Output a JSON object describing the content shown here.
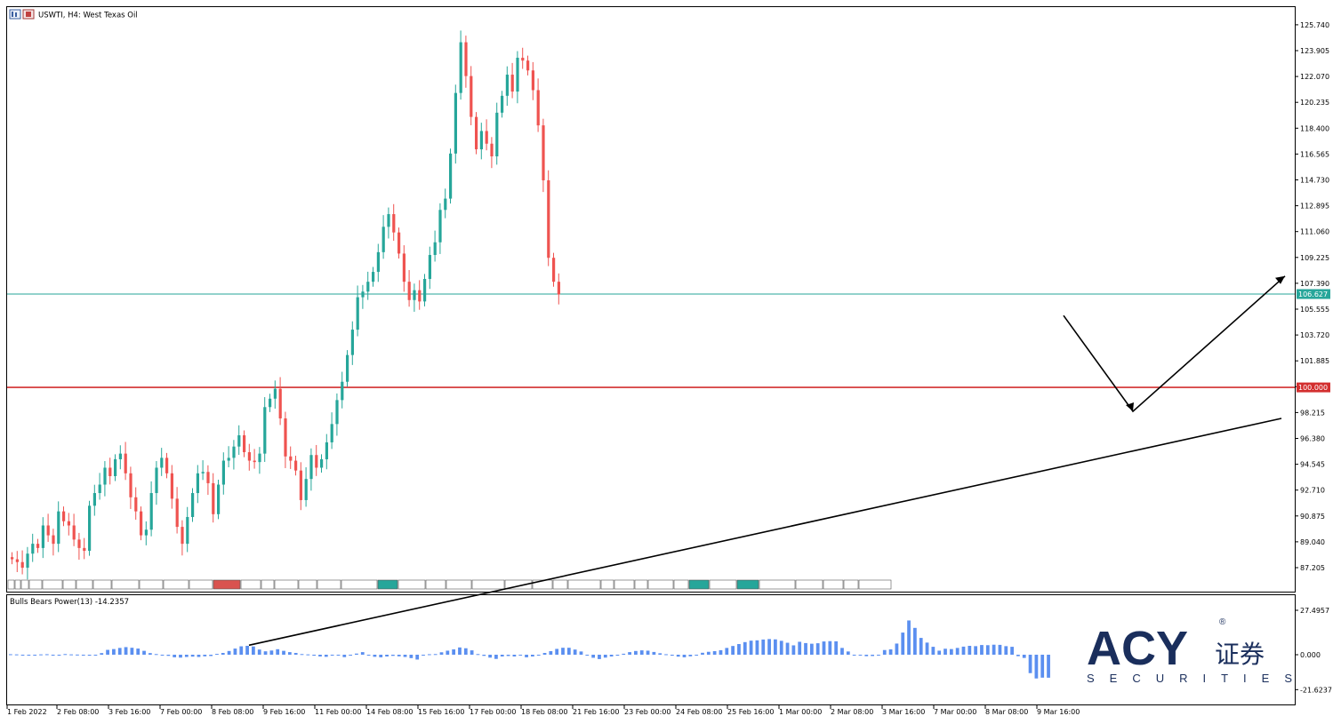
{
  "header": {
    "symbol_label": "USWTI, H4:  West Texas Oil",
    "symbol_icon": "chart-window-icon"
  },
  "colors": {
    "bull": "#26a69a",
    "bear": "#ef5350",
    "current_line": "#26a69a",
    "level_line": "#d32f2f",
    "indicator": "#5b8ff0",
    "brand": "#1a2e5c"
  },
  "chart_data": [
    {
      "type": "candlestick",
      "title": "USWTI, H4:  West Texas Oil",
      "y_ticks": [
        "125.740",
        "123.905",
        "122.070",
        "120.235",
        "118.400",
        "116.565",
        "114.730",
        "112.895",
        "111.060",
        "109.225",
        "107.390",
        "105.555",
        "103.720",
        "101.885",
        "100.050",
        "98.215",
        "96.380",
        "94.545",
        "92.710",
        "90.875",
        "89.040",
        "87.205"
      ],
      "ylim": [
        86.4,
        126.5
      ],
      "x_tick_labels": [
        "1 Feb 2022",
        "2 Feb 08:00",
        "3 Feb 16:00",
        "7 Feb 00:00",
        "8 Feb 08:00",
        "9 Feb 16:00",
        "11 Feb 00:00",
        "14 Feb 08:00",
        "15 Feb 16:00",
        "17 Feb 00:00",
        "18 Feb 08:00",
        "21 Feb 16:00",
        "23 Feb 00:00",
        "24 Feb 08:00",
        "25 Feb 16:00",
        "1 Mar 00:00",
        "2 Mar 08:00",
        "3 Mar 16:00",
        "7 Mar 00:00",
        "8 Mar 08:00",
        "9 Mar 16:00"
      ],
      "current_price": {
        "value": 106.627,
        "label": "106.627"
      },
      "level": {
        "value": 100.0,
        "label": "100.000"
      },
      "close_path": [
        87.8,
        87.6,
        87.2,
        88.2,
        88.9,
        88.6,
        90.2,
        89.5,
        88.9,
        91.2,
        90.5,
        90.2,
        89.2,
        88.6,
        88.4,
        91.6,
        92.5,
        93.1,
        94.3,
        93.7,
        94.9,
        95.3,
        93.9,
        92.2,
        91.2,
        89.5,
        89.9,
        92.5,
        94.3,
        95.0,
        93.9,
        92.1,
        90.1,
        88.9,
        90.8,
        92.5,
        93.9,
        94.0,
        93.2,
        91.0,
        93.1,
        94.8,
        95.0,
        95.8,
        96.6,
        95.4,
        94.8,
        94.7,
        95.3,
        98.6,
        99.2,
        99.9,
        97.8,
        95.1,
        94.8,
        94.1,
        92.0,
        93.5,
        95.2,
        94.3,
        94.9,
        96.1,
        97.4,
        99.1,
        100.4,
        102.3,
        104.1,
        106.4,
        106.8,
        107.5,
        108.2,
        109.6,
        111.4,
        112.3,
        111.0,
        109.5,
        107.5,
        106.2,
        106.9,
        106.1,
        107.7,
        109.4,
        110.3,
        112.6,
        113.4,
        116.6,
        120.9,
        124.5,
        122.1,
        119.2,
        116.9,
        118.2,
        117.3,
        116.4,
        119.5,
        120.7,
        122.2,
        121.0,
        123.4,
        123.2,
        122.5,
        121.1,
        118.6,
        114.7,
        109.2,
        107.5,
        106.6
      ],
      "annotations": [
        {
          "type": "trendline",
          "from": [
            "1 Feb 2022",
            81.7
          ],
          "to": [
            "beyond 9 Mar 16:00",
            97.8
          ]
        },
        {
          "type": "arrow",
          "from": [
            "9 Mar 16:00",
            105.1
          ],
          "via": [
            "after 9 Mar 16:00",
            98.3
          ],
          "to": [
            "right edge",
            107.9
          ]
        }
      ]
    },
    {
      "type": "bar",
      "title": "Bulls Bears Power(13) -14.2357",
      "y_ticks": [
        "27.4957",
        "0.000",
        "-21.6237"
      ],
      "ylim": [
        -21.6237,
        27.4957
      ],
      "last_value": -14.2357,
      "values": [
        0.3,
        0.2,
        -0.3,
        0.0,
        -0.4,
        0.2,
        0.3,
        -0.1,
        -0.2,
        0.4,
        0.2,
        0.1,
        -0.4,
        -0.6,
        -0.5,
        1.0,
        3.0,
        3.5,
        4.2,
        4.7,
        4.3,
        3.8,
        2.4,
        1.0,
        0.4,
        -0.5,
        -0.7,
        -1.6,
        -1.8,
        -1.4,
        -1.2,
        -1.4,
        -1.0,
        -0.8,
        0.5,
        1.1,
        2.3,
        3.8,
        5.2,
        5.5,
        5.1,
        3.2,
        2.1,
        2.6,
        3.4,
        2.4,
        1.6,
        1.1,
        0.4,
        0.2,
        -0.6,
        -1.1,
        -1.3,
        -0.3,
        -0.5,
        -1.5,
        -0.4,
        0.7,
        1.6,
        -0.2,
        -1.3,
        -1.6,
        -1.1,
        -0.7,
        -1.0,
        -1.4,
        -2.1,
        -3.0,
        -0.4,
        0.3,
        0.4,
        1.5,
        2.5,
        3.3,
        4.5,
        4.0,
        2.7,
        0.4,
        -0.7,
        -1.8,
        -2.6,
        -1.1,
        -0.8,
        -1.1,
        0.0,
        -1.6,
        -1.1,
        -0.5,
        1.1,
        2.2,
        3.6,
        4.3,
        4.3,
        3.2,
        2.0,
        -0.4,
        -1.9,
        -2.7,
        -1.8,
        -1.1,
        -0.6,
        0.6,
        1.6,
        2.3,
        2.7,
        2.5,
        1.7,
        0.9,
        0.3,
        -0.6,
        -1.2,
        -1.6,
        -1.0,
        -0.4,
        1.2,
        1.8,
        2.2,
        2.8,
        4.2,
        5.4,
        6.6,
        7.8,
        8.7,
        8.9,
        9.4,
        9.7,
        9.5,
        8.6,
        7.4,
        5.8,
        8.0,
        7.2,
        6.8,
        7.1,
        8.2,
        8.4,
        8.3,
        4.2,
        2.0,
        -0.5,
        -0.5,
        -0.9,
        -0.8,
        -0.5,
        2.9,
        3.3,
        6.9,
        13.7,
        21.2,
        16.6,
        10.4,
        7.5,
        4.9,
        2.5,
        3.7,
        3.5,
        4.2,
        5.0,
        5.5,
        5.3,
        6.0,
        5.9,
        6.2,
        6.1,
        5.3,
        4.9,
        -0.9,
        -2.0,
        -11.4,
        -14.7,
        -14.2,
        -14.2357
      ]
    }
  ],
  "branding": {
    "logo_text": "ACY",
    "logo_cn": "证券",
    "logo_sub": "SECURITIES",
    "registered_mark": "®"
  }
}
